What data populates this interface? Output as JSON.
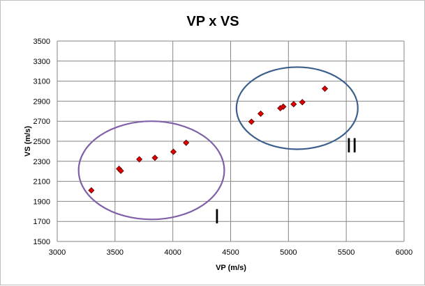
{
  "chart_data": {
    "type": "scatter",
    "title": "VP x VS",
    "xlabel": "VP (m/s)",
    "ylabel": "VS (m/s)",
    "xlim": [
      3000,
      6000
    ],
    "ylim": [
      1500,
      3500
    ],
    "xticks": [
      3000,
      3500,
      4000,
      4500,
      5000,
      5500,
      6000
    ],
    "yticks": [
      1500,
      1700,
      1900,
      2100,
      2300,
      2500,
      2700,
      2900,
      3100,
      3300,
      3500
    ],
    "grid": true,
    "series": [
      {
        "marker": "diamond",
        "color": "#e00000",
        "points": [
          [
            3295,
            2010
          ],
          [
            3535,
            2225
          ],
          [
            3550,
            2205
          ],
          [
            3710,
            2320
          ],
          [
            3845,
            2335
          ],
          [
            4005,
            2395
          ],
          [
            4115,
            2485
          ],
          [
            4680,
            2695
          ],
          [
            4760,
            2775
          ],
          [
            4930,
            2830
          ],
          [
            4955,
            2845
          ],
          [
            5045,
            2870
          ],
          [
            5120,
            2890
          ],
          [
            5315,
            3025
          ]
        ]
      }
    ],
    "annotations": [
      {
        "type": "ellipse",
        "label": "I",
        "color": "#8060a8",
        "center": [
          3815,
          2210
        ],
        "radius": [
          630,
          490
        ]
      },
      {
        "type": "ellipse",
        "label": "II",
        "color": "#3a5f8a",
        "center": [
          5075,
          2830
        ],
        "radius": [
          525,
          410
        ]
      }
    ]
  }
}
